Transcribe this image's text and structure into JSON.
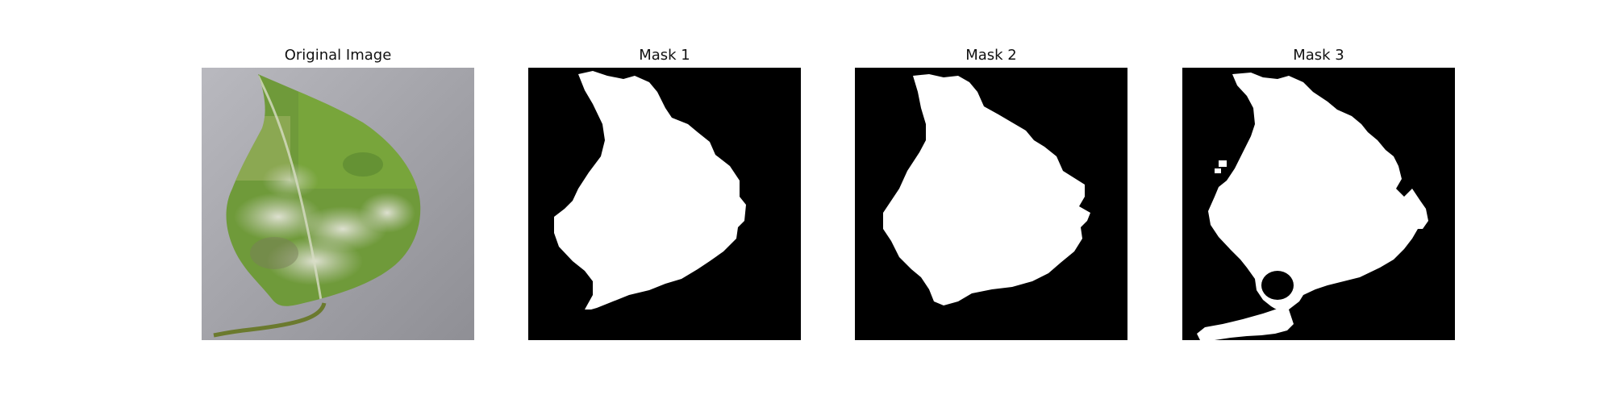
{
  "panels": [
    {
      "title": "Original Image",
      "content": "leaf photo: green leaf with white powdery patches on grey background"
    },
    {
      "title": "Mask 1",
      "content": "binary mask: white leaf region on black"
    },
    {
      "title": "Mask 2",
      "content": "binary mask: white leaf region on black"
    },
    {
      "title": "Mask 3",
      "content": "binary mask: white leaf region plus stem on black"
    }
  ],
  "colors": {
    "background": "#ffffff",
    "mask_fg": "#ffffff",
    "mask_bg": "#000000",
    "leaf_green": "#6f9a3a",
    "powder": "#cfd2c2",
    "photo_bg": "#a7a7ad"
  }
}
